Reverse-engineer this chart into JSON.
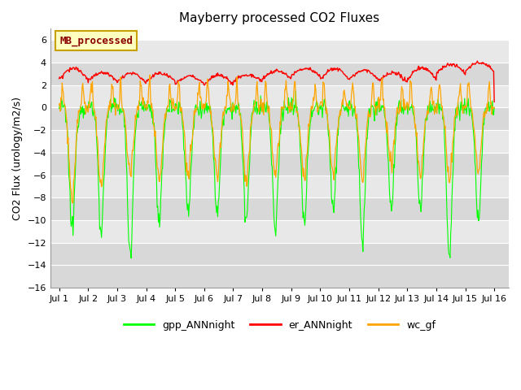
{
  "title": "Mayberry processed CO2 Fluxes",
  "ylabel": "CO2 Flux (urology/m2/s)",
  "ylim": [
    -16,
    7
  ],
  "yticks": [
    -16,
    -14,
    -12,
    -10,
    -8,
    -6,
    -4,
    -2,
    0,
    2,
    4,
    6
  ],
  "xlim_start": -0.3,
  "xlim_end": 15.5,
  "num_points": 720,
  "fig_bg_color": "#ffffff",
  "plot_bg_color": "#ffffff",
  "band_light": "#e8e8e8",
  "band_dark": "#d0d0d0",
  "grid_color": "#c8c8c8",
  "legend_label": "MB_processed",
  "legend_bg": "#ffffc0",
  "legend_edge": "#c8a000",
  "legend_text_color": "#8b0000",
  "series": {
    "gpp": {
      "label": "gpp_ANNnight",
      "color": "#00ff00"
    },
    "er": {
      "label": "er_ANNnight",
      "color": "#ff0000"
    },
    "wc": {
      "label": "wc_gf",
      "color": "#ffa500"
    }
  },
  "font_family": "DejaVu Sans",
  "title_fontsize": 11,
  "axis_fontsize": 9,
  "tick_fontsize": 8
}
